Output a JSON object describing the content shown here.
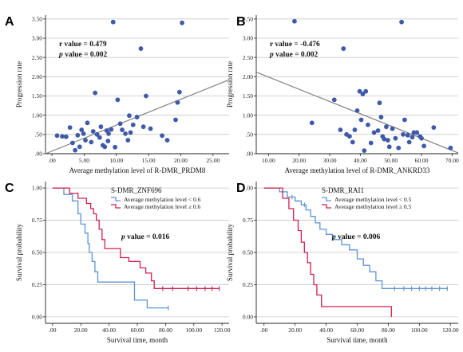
{
  "chart_data": [
    {
      "panel": "A",
      "type": "scatter",
      "xlabel": "Average methylation level of R-DMR_PRDM8",
      "ylabel": "Progression rate",
      "xlim": [
        -1.0,
        27.5
      ],
      "ylim": [
        0.0,
        3.6
      ],
      "xticks": [
        ".00",
        "5.00",
        "10.00",
        "15.00",
        "20.00",
        "25.00"
      ],
      "xtick_values": [
        0,
        5,
        10,
        15,
        20,
        25
      ],
      "yticks": [
        ".00",
        ".50",
        "1.00",
        "1.50",
        "2.00",
        "2.50",
        "3.00",
        "3.50"
      ],
      "ytick_values": [
        0,
        0.5,
        1.0,
        1.5,
        2.0,
        2.5,
        3.0,
        3.5
      ],
      "annotations": [
        {
          "label": "r value",
          "value": "0.479"
        },
        {
          "label": "p value",
          "value": "0.002"
        }
      ],
      "colors": {
        "points": "#3e5aa8",
        "fit_line": "#808080"
      },
      "fit_line": {
        "x": [
          -1.0,
          27.5
        ],
        "y": [
          0.0,
          1.92
        ]
      },
      "points": [
        {
          "x": 0.8,
          "y": 0.47
        },
        {
          "x": 1.6,
          "y": 0.45
        },
        {
          "x": 2.2,
          "y": 0.44
        },
        {
          "x": 2.8,
          "y": 0.68
        },
        {
          "x": 3.2,
          "y": 0.28
        },
        {
          "x": 3.6,
          "y": 0.09
        },
        {
          "x": 4.0,
          "y": 0.48
        },
        {
          "x": 4.3,
          "y": 0.18
        },
        {
          "x": 4.6,
          "y": 0.62
        },
        {
          "x": 4.9,
          "y": 0.52
        },
        {
          "x": 5.2,
          "y": 0.35
        },
        {
          "x": 5.5,
          "y": 0.8
        },
        {
          "x": 6.1,
          "y": 0.3
        },
        {
          "x": 6.4,
          "y": 0.58
        },
        {
          "x": 6.7,
          "y": 1.58
        },
        {
          "x": 7.0,
          "y": 0.5
        },
        {
          "x": 7.4,
          "y": 0.42
        },
        {
          "x": 7.6,
          "y": 0.7
        },
        {
          "x": 7.9,
          "y": 0.22
        },
        {
          "x": 8.2,
          "y": 0.18
        },
        {
          "x": 8.5,
          "y": 0.6
        },
        {
          "x": 8.7,
          "y": 0.33
        },
        {
          "x": 8.8,
          "y": 0.52
        },
        {
          "x": 9.2,
          "y": 0.63
        },
        {
          "x": 9.5,
          "y": 3.42
        },
        {
          "x": 9.8,
          "y": 0.17
        },
        {
          "x": 10.2,
          "y": 1.4
        },
        {
          "x": 10.6,
          "y": 0.78
        },
        {
          "x": 10.9,
          "y": 0.62
        },
        {
          "x": 11.4,
          "y": 0.52
        },
        {
          "x": 11.8,
          "y": 0.35
        },
        {
          "x": 12.0,
          "y": 0.99
        },
        {
          "x": 12.2,
          "y": 0.55
        },
        {
          "x": 12.6,
          "y": 0.75
        },
        {
          "x": 13.2,
          "y": 0.95
        },
        {
          "x": 13.8,
          "y": 2.73
        },
        {
          "x": 14.2,
          "y": 0.7
        },
        {
          "x": 14.6,
          "y": 1.5
        },
        {
          "x": 15.3,
          "y": 0.65
        },
        {
          "x": 17.1,
          "y": 0.47
        },
        {
          "x": 17.9,
          "y": 0.35
        },
        {
          "x": 19.2,
          "y": 0.88
        },
        {
          "x": 19.5,
          "y": 1.33
        },
        {
          "x": 19.8,
          "y": 1.6
        },
        {
          "x": 20.2,
          "y": 3.4
        }
      ]
    },
    {
      "panel": "B",
      "type": "scatter",
      "xlabel": "Average methylation level of R-DMR_ANKRD33",
      "ylabel": "Progression rate",
      "xlim": [
        6.0,
        72.0
      ],
      "ylim": [
        0.0,
        3.6
      ],
      "xticks": [
        "10.00",
        "20.00",
        "30.00",
        "40.00",
        "50.00",
        "60.00",
        "70.00"
      ],
      "xtick_values": [
        10,
        20,
        30,
        40,
        50,
        60,
        70
      ],
      "yticks": [
        ".00",
        ".50",
        "1.00",
        "1.50",
        "2.00",
        "2.50",
        "3.00",
        "3.50"
      ],
      "ytick_values": [
        0,
        0.5,
        1.0,
        1.5,
        2.0,
        2.5,
        3.0,
        3.5
      ],
      "annotations": [
        {
          "label": "r value",
          "value": "-0.476"
        },
        {
          "label": "p value",
          "value": "0.002"
        }
      ],
      "colors": {
        "points": "#3e5aa8",
        "fit_line": "#808080"
      },
      "fit_line": {
        "x": [
          6.0,
          72.0
        ],
        "y": [
          2.12,
          0.02
        ]
      },
      "points": [
        {
          "x": 18.5,
          "y": 3.44
        },
        {
          "x": 24.2,
          "y": 0.8
        },
        {
          "x": 31.5,
          "y": 1.4
        },
        {
          "x": 33.5,
          "y": 0.62
        },
        {
          "x": 34.5,
          "y": 2.73
        },
        {
          "x": 35.5,
          "y": 0.5
        },
        {
          "x": 36.5,
          "y": 0.45
        },
        {
          "x": 37.5,
          "y": 0.3
        },
        {
          "x": 38.2,
          "y": 0.62
        },
        {
          "x": 39.0,
          "y": 1.12
        },
        {
          "x": 39.8,
          "y": 1.62
        },
        {
          "x": 40.3,
          "y": 0.88
        },
        {
          "x": 40.8,
          "y": 1.55
        },
        {
          "x": 41.3,
          "y": 0.08
        },
        {
          "x": 41.8,
          "y": 1.62
        },
        {
          "x": 42.5,
          "y": 0.75
        },
        {
          "x": 43.5,
          "y": 0.28
        },
        {
          "x": 44.5,
          "y": 0.55
        },
        {
          "x": 45.8,
          "y": 0.6
        },
        {
          "x": 46.3,
          "y": 1.32
        },
        {
          "x": 46.8,
          "y": 0.95
        },
        {
          "x": 47.3,
          "y": 0.45
        },
        {
          "x": 47.8,
          "y": 0.38
        },
        {
          "x": 48.5,
          "y": 0.7
        },
        {
          "x": 49.0,
          "y": 0.35
        },
        {
          "x": 49.5,
          "y": 0.18
        },
        {
          "x": 50.5,
          "y": 0.65
        },
        {
          "x": 51.5,
          "y": 0.4
        },
        {
          "x": 52.5,
          "y": 0.15
        },
        {
          "x": 53.5,
          "y": 3.42
        },
        {
          "x": 54.0,
          "y": 0.5
        },
        {
          "x": 54.5,
          "y": 0.88
        },
        {
          "x": 55.5,
          "y": 0.48
        },
        {
          "x": 56.0,
          "y": 0.3
        },
        {
          "x": 57.0,
          "y": 0.43
        },
        {
          "x": 57.5,
          "y": 0.55
        },
        {
          "x": 58.5,
          "y": 0.55
        },
        {
          "x": 59.5,
          "y": 0.45
        },
        {
          "x": 60.0,
          "y": 0.4
        },
        {
          "x": 60.8,
          "y": 0.2
        },
        {
          "x": 64.0,
          "y": 0.68
        },
        {
          "x": 69.5,
          "y": 0.15
        }
      ]
    },
    {
      "panel": "C",
      "type": "line",
      "subtype": "kaplan-meier",
      "title": "S-DMR_ZNF696",
      "xlabel": "Survival time, month",
      "ylabel": "Survival probability",
      "xlim": [
        -5,
        125
      ],
      "ylim": [
        -0.05,
        1.05
      ],
      "xticks": [
        ".00",
        "20.00",
        "40.00",
        "60.00",
        "80.00",
        "100.00",
        "120.00"
      ],
      "xtick_values": [
        0,
        20,
        40,
        60,
        80,
        100,
        120
      ],
      "yticks": [
        "0.00",
        "0.25",
        "0.50",
        "0.75",
        "1.00"
      ],
      "ytick_values": [
        0,
        0.25,
        0.5,
        0.75,
        1.0
      ],
      "annotations": [
        {
          "label": "p value",
          "value": "0.016"
        }
      ],
      "series": [
        {
          "name": "Average methylation level < 0.6",
          "color": "#5d93d6",
          "steps": [
            [
              0,
              1.0
            ],
            [
              8,
              1.0
            ],
            [
              8,
              0.95
            ],
            [
              14,
              0.95
            ],
            [
              14,
              0.9
            ],
            [
              18,
              0.9
            ],
            [
              18,
              0.8
            ],
            [
              20,
              0.8
            ],
            [
              20,
              0.72
            ],
            [
              23,
              0.72
            ],
            [
              23,
              0.65
            ],
            [
              25,
              0.65
            ],
            [
              25,
              0.57
            ],
            [
              26,
              0.57
            ],
            [
              26,
              0.5
            ],
            [
              28,
              0.5
            ],
            [
              28,
              0.43
            ],
            [
              30,
              0.43
            ],
            [
              30,
              0.35
            ],
            [
              32,
              0.35
            ],
            [
              32,
              0.27
            ],
            [
              58,
              0.27
            ],
            [
              58,
              0.13
            ],
            [
              67,
              0.13
            ],
            [
              67,
              0.07
            ],
            [
              82,
              0.07
            ]
          ],
          "censored": [
            [
              82,
              0.07
            ]
          ]
        },
        {
          "name": "Average methylation level ≥ 0.6",
          "color": "#cf1f4e",
          "steps": [
            [
              0,
              1.0
            ],
            [
              12,
              1.0
            ],
            [
              12,
              0.96
            ],
            [
              18,
              0.96
            ],
            [
              18,
              0.92
            ],
            [
              24,
              0.92
            ],
            [
              24,
              0.88
            ],
            [
              27,
              0.88
            ],
            [
              27,
              0.84
            ],
            [
              29,
              0.84
            ],
            [
              29,
              0.8
            ],
            [
              31,
              0.8
            ],
            [
              31,
              0.75
            ],
            [
              33,
              0.75
            ],
            [
              33,
              0.68
            ],
            [
              35,
              0.68
            ],
            [
              35,
              0.6
            ],
            [
              37,
              0.6
            ],
            [
              37,
              0.53
            ],
            [
              48,
              0.53
            ],
            [
              48,
              0.46
            ],
            [
              54,
              0.46
            ],
            [
              54,
              0.43
            ],
            [
              62,
              0.43
            ],
            [
              62,
              0.38
            ],
            [
              66,
              0.38
            ],
            [
              66,
              0.34
            ],
            [
              70,
              0.34
            ],
            [
              70,
              0.28
            ],
            [
              72,
              0.28
            ],
            [
              72,
              0.22
            ],
            [
              118,
              0.22
            ]
          ],
          "censored": [
            [
              78,
              0.22
            ],
            [
              85,
              0.22
            ],
            [
              96,
              0.22
            ],
            [
              102,
              0.22
            ],
            [
              108,
              0.22
            ],
            [
              113,
              0.22
            ],
            [
              118,
              0.22
            ]
          ]
        }
      ]
    },
    {
      "panel": "D",
      "type": "line",
      "subtype": "kaplan-meier",
      "title": "S-DMR_RAI1",
      "xlabel": "Survival time, month",
      "ylabel": "Survival probability",
      "xlim": [
        -5,
        125
      ],
      "ylim": [
        -0.05,
        1.05
      ],
      "xticks": [
        ".00",
        "20.00",
        "40.00",
        "60.00",
        "80.00",
        "100.00",
        "120.00"
      ],
      "xtick_values": [
        0,
        20,
        40,
        60,
        80,
        100,
        120
      ],
      "yticks": [
        "0.00",
        "0.25",
        "0.50",
        "0.75",
        "1.00"
      ],
      "ytick_values": [
        0,
        0.25,
        0.5,
        0.75,
        1.0
      ],
      "annotations": [
        {
          "label": "p value",
          "value": "0.006"
        }
      ],
      "series": [
        {
          "name": "Average methylation level < 0.5",
          "color": "#5d93d6",
          "steps": [
            [
              0,
              1.0
            ],
            [
              10,
              1.0
            ],
            [
              10,
              0.97
            ],
            [
              15,
              0.97
            ],
            [
              15,
              0.93
            ],
            [
              20,
              0.93
            ],
            [
              20,
              0.9
            ],
            [
              24,
              0.9
            ],
            [
              24,
              0.87
            ],
            [
              27,
              0.87
            ],
            [
              27,
              0.83
            ],
            [
              30,
              0.83
            ],
            [
              30,
              0.78
            ],
            [
              33,
              0.78
            ],
            [
              33,
              0.73
            ],
            [
              36,
              0.73
            ],
            [
              36,
              0.68
            ],
            [
              40,
              0.68
            ],
            [
              40,
              0.64
            ],
            [
              44,
              0.64
            ],
            [
              44,
              0.6
            ],
            [
              50,
              0.6
            ],
            [
              50,
              0.56
            ],
            [
              55,
              0.56
            ],
            [
              55,
              0.52
            ],
            [
              60,
              0.52
            ],
            [
              60,
              0.45
            ],
            [
              64,
              0.45
            ],
            [
              64,
              0.4
            ],
            [
              68,
              0.4
            ],
            [
              68,
              0.35
            ],
            [
              72,
              0.35
            ],
            [
              72,
              0.28
            ],
            [
              76,
              0.28
            ],
            [
              76,
              0.22
            ],
            [
              118,
              0.22
            ]
          ],
          "censored": [
            [
              18,
              0.93
            ],
            [
              26,
              0.87
            ],
            [
              84,
              0.22
            ],
            [
              90,
              0.22
            ],
            [
              95,
              0.22
            ],
            [
              100,
              0.22
            ],
            [
              104,
              0.22
            ],
            [
              108,
              0.22
            ],
            [
              113,
              0.22
            ],
            [
              118,
              0.22
            ]
          ]
        },
        {
          "name": "Average methylation level ≥ 0.5",
          "color": "#cf1f4e",
          "steps": [
            [
              0,
              1.0
            ],
            [
              12,
              1.0
            ],
            [
              12,
              0.92
            ],
            [
              16,
              0.92
            ],
            [
              16,
              0.84
            ],
            [
              19,
              0.84
            ],
            [
              19,
              0.75
            ],
            [
              22,
              0.75
            ],
            [
              22,
              0.67
            ],
            [
              24,
              0.67
            ],
            [
              24,
              0.58
            ],
            [
              26,
              0.58
            ],
            [
              26,
              0.5
            ],
            [
              28,
              0.5
            ],
            [
              28,
              0.42
            ],
            [
              30,
              0.42
            ],
            [
              30,
              0.33
            ],
            [
              32,
              0.33
            ],
            [
              32,
              0.25
            ],
            [
              34,
              0.25
            ],
            [
              34,
              0.17
            ],
            [
              37,
              0.17
            ],
            [
              37,
              0.08
            ],
            [
              82,
              0.08
            ],
            [
              82,
              0.0
            ]
          ],
          "censored": []
        }
      ]
    }
  ]
}
